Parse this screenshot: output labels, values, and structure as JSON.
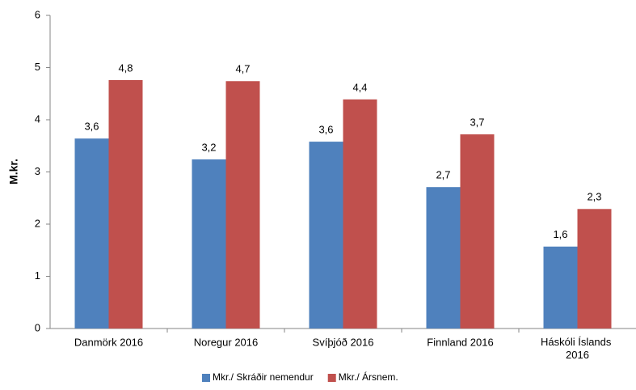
{
  "chart_data": {
    "type": "bar",
    "y_label": "M.kr.",
    "categories": [
      "Danmörk 2016",
      "Noregur 2016",
      "Svíþjóð 2016",
      "Finnland 2016",
      "Háskóli Íslands 2016"
    ],
    "series": [
      {
        "name": "Mkr./ Skráðir nemendur",
        "color": "#4f81bd",
        "values": [
          3.64,
          3.24,
          3.58,
          2.71,
          1.57
        ],
        "value_labels": [
          "3,6",
          "3,2",
          "3,6",
          "2,7",
          "1,6"
        ]
      },
      {
        "name": "Mkr./ Ársnem.",
        "color": "#c0504d",
        "values": [
          4.76,
          4.74,
          4.39,
          3.72,
          2.29
        ],
        "value_labels": [
          "4,8",
          "4,7",
          "4,4",
          "3,7",
          "2,3"
        ]
      }
    ],
    "ylim": [
      0,
      6
    ],
    "yticks": [
      0,
      1,
      2,
      3,
      4,
      5,
      6
    ],
    "grid": false,
    "legend": "bottom"
  }
}
